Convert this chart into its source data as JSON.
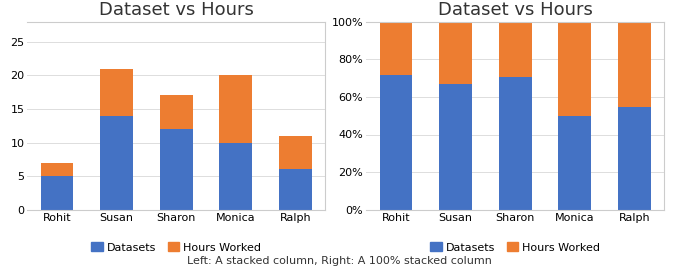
{
  "categories": [
    "Rohit",
    "Susan",
    "Sharon",
    "Monica",
    "Ralph"
  ],
  "datasets": [
    5,
    14,
    12,
    10,
    6
  ],
  "hours_worked": [
    2,
    7,
    5,
    10,
    5
  ],
  "title": "Dataset vs Hours",
  "bar_color_blue": "#4472C4",
  "bar_color_orange": "#ED7D31",
  "legend_datasets": "Datasets",
  "legend_hours": "Hours Worked",
  "caption": "Left: A stacked column, Right: A 100% stacked column",
  "left_yticks": [
    0,
    5,
    10,
    15,
    20,
    25
  ],
  "right_ytick_labels": [
    "0%",
    "20%",
    "40%",
    "60%",
    "80%",
    "100%"
  ],
  "title_fontsize": 13,
  "axis_fontsize": 8,
  "legend_fontsize": 8,
  "caption_fontsize": 8
}
